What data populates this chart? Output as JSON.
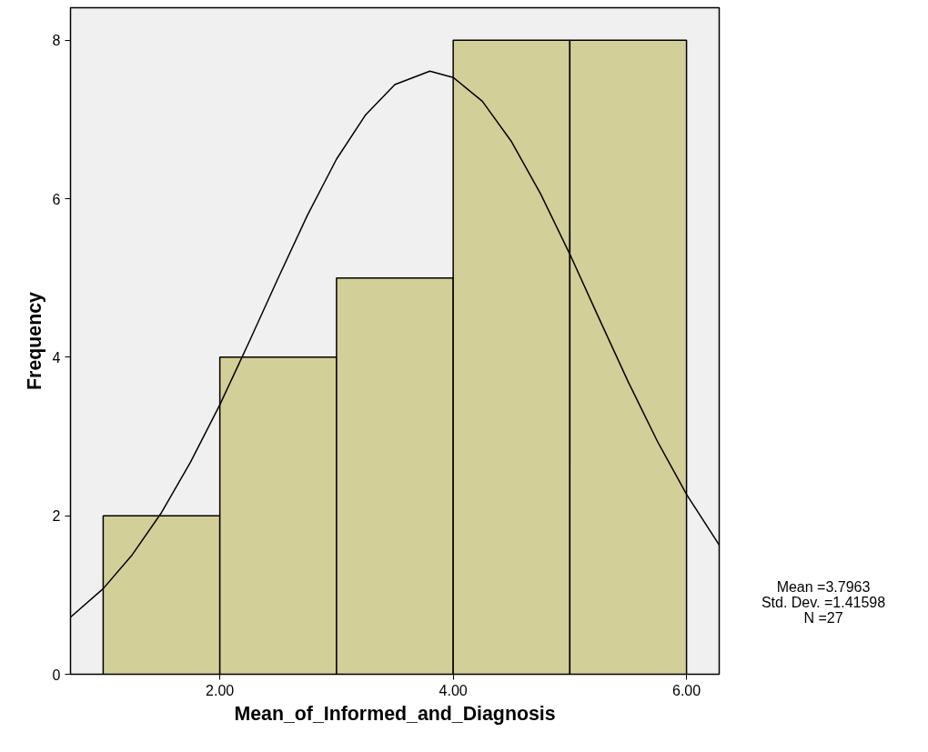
{
  "chart_data": {
    "type": "histogram",
    "xlabel": "Mean_of_Informed_and_Diagnosis",
    "ylabel": "Frequency",
    "bins": [
      1,
      2,
      3,
      4,
      5,
      6
    ],
    "values": [
      2,
      4,
      5,
      8,
      8
    ],
    "color": "#d3cf98",
    "series": [
      {
        "type": "line",
        "color": "#000000",
        "x": [
          0.72,
          1.0,
          1.25,
          1.5,
          1.75,
          2.0,
          2.25,
          2.5,
          2.75,
          3.0,
          3.25,
          3.5,
          3.8,
          4.0,
          4.25,
          4.5,
          4.75,
          5.0,
          5.25,
          5.5,
          5.75,
          6.0,
          6.28
        ],
        "values": [
          0.72,
          1.08,
          1.51,
          2.04,
          2.68,
          3.4,
          4.19,
          5.0,
          5.79,
          6.5,
          7.06,
          7.44,
          7.61,
          7.53,
          7.23,
          6.72,
          6.06,
          5.3,
          4.49,
          3.69,
          2.94,
          2.27,
          1.63
        ]
      }
    ],
    "xlim": [
      0.72,
      6.28
    ],
    "ylim": [
      0,
      8.41
    ],
    "xticks": [
      {
        "value": 2,
        "label": "2.00"
      },
      {
        "value": 4,
        "label": "4.00"
      },
      {
        "value": 6,
        "label": "6.00"
      }
    ],
    "yticks": [
      0,
      2,
      4,
      6,
      8
    ],
    "grid": false,
    "annotations": [
      "Mean =3.7963",
      "Std. Dev. =1.41598",
      "N =27"
    ]
  }
}
